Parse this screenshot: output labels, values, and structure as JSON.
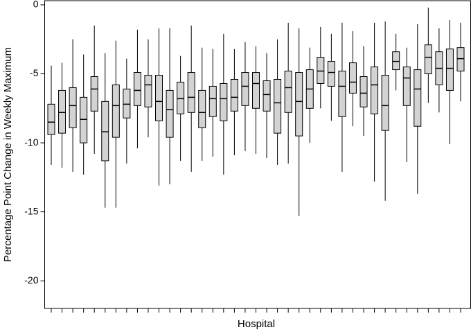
{
  "chart_data": {
    "type": "box",
    "xlabel": "Hospital",
    "ylabel": "Percentage Point Change in Weekly Maximum",
    "categories": [
      null,
      null,
      null,
      null,
      null,
      null,
      null,
      null,
      null,
      null,
      null,
      null,
      null,
      null,
      null,
      null,
      null,
      null,
      null,
      null,
      null,
      null,
      null,
      null,
      null,
      null,
      null,
      null,
      null,
      null,
      null,
      null,
      null,
      null,
      null,
      null,
      null,
      null,
      null
    ],
    "max": [
      -4.4,
      -4.2,
      -2.5,
      -3.6,
      -1.5,
      -3.5,
      -2.6,
      -3.9,
      -1.8,
      -2.5,
      -1.7,
      -1.7,
      -3.7,
      -1.5,
      -3.1,
      -3.2,
      -2.1,
      -3.2,
      -2.7,
      -3.0,
      -3.5,
      -2.5,
      -1.3,
      -1.7,
      -3.1,
      -1.6,
      -2.1,
      -1.3,
      -1.9,
      -3.0,
      -1.3,
      -1.2,
      -2.1,
      -3.1,
      -1.4,
      -0.2,
      -1.7,
      -1.1,
      -1.3
    ],
    "q3": [
      -7.2,
      -6.2,
      -6.0,
      -6.7,
      -5.2,
      -7.0,
      -5.8,
      -6.1,
      -4.9,
      -5.1,
      -5.1,
      -6.2,
      -5.6,
      -4.9,
      -6.2,
      -5.9,
      -5.7,
      -5.4,
      -4.9,
      -4.9,
      -5.5,
      -5.4,
      -4.8,
      -4.9,
      -4.7,
      -3.8,
      -4.1,
      -4.8,
      -4.2,
      -5.2,
      -4.5,
      -5.1,
      -3.4,
      -4.5,
      -4.7,
      -2.9,
      -3.4,
      -3.2,
      -3.1
    ],
    "median": [
      -8.5,
      -7.8,
      -7.3,
      -8.3,
      -6.1,
      -9.2,
      -7.3,
      -7.2,
      -6.2,
      -5.8,
      -7.0,
      -7.6,
      -6.8,
      -6.7,
      -7.8,
      -6.8,
      -6.8,
      -6.7,
      -5.9,
      -5.7,
      -6.5,
      -7.1,
      -6.0,
      -7.0,
      -6.1,
      -4.8,
      -4.9,
      -5.9,
      -5.6,
      -6.4,
      -5.8,
      -7.3,
      -4.1,
      -5.3,
      -6.1,
      -3.8,
      -4.6,
      -4.6,
      -3.9
    ],
    "q1": [
      -9.4,
      -9.3,
      -8.9,
      -10.0,
      -7.7,
      -11.3,
      -9.6,
      -8.2,
      -7.3,
      -7.4,
      -8.4,
      -9.6,
      -7.9,
      -7.8,
      -8.9,
      -8.1,
      -8.4,
      -7.7,
      -7.3,
      -7.5,
      -7.7,
      -9.3,
      -7.8,
      -9.5,
      -7.5,
      -5.7,
      -5.9,
      -8.1,
      -6.4,
      -7.4,
      -7.9,
      -9.1,
      -4.7,
      -7.3,
      -8.8,
      -5.0,
      -5.8,
      -6.2,
      -4.8
    ],
    "min": [
      -11.6,
      -11.8,
      -12.1,
      -12.3,
      -10.8,
      -14.7,
      -14.7,
      -11.5,
      -10.4,
      -9.6,
      -13.1,
      -13.0,
      -11.3,
      -12.1,
      -11.3,
      -11.0,
      -12.3,
      -10.9,
      -10.6,
      -10.8,
      -11.1,
      -11.6,
      -11.5,
      -15.3,
      -10.0,
      -7.5,
      -8.4,
      -12.1,
      -8.8,
      -9.5,
      -12.8,
      -14.2,
      -6.2,
      -11.4,
      -13.7,
      -7.1,
      -7.8,
      -10.1,
      -7.0
    ],
    "color": "#d3d3d3",
    "ylim": [
      -22,
      0.3
    ],
    "yticks": [
      -20,
      -15,
      -10,
      -5,
      0
    ],
    "grid": false
  }
}
